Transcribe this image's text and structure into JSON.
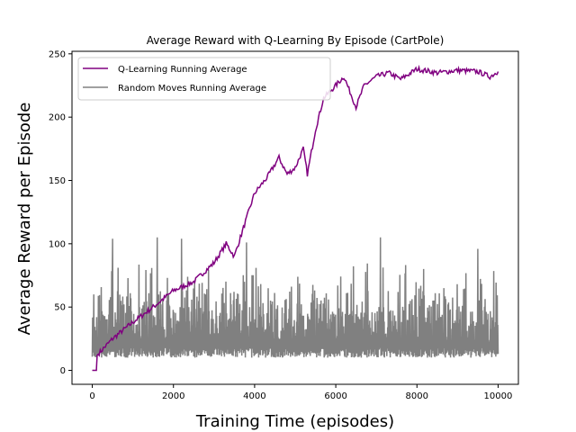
{
  "chart_data": {
    "type": "line",
    "title": "Average Reward with Q-Learning By Episode (CartPole)",
    "xlabel": "Training Time (episodes)",
    "ylabel": "Average Reward per Episode",
    "xlim": [
      -500,
      10500
    ],
    "ylim": [
      -11,
      252
    ],
    "x_ticks": [
      0,
      2000,
      4000,
      6000,
      8000,
      10000
    ],
    "x_tick_labels": [
      "0",
      "2000",
      "4000",
      "6000",
      "8000",
      "10000"
    ],
    "y_ticks": [
      0,
      50,
      100,
      150,
      200,
      250
    ],
    "y_tick_labels": [
      "0",
      "50",
      "100",
      "150",
      "200",
      "250"
    ],
    "grid": false,
    "legend_position": "upper-left",
    "series": [
      {
        "name": "Q-Learning Running Average",
        "color": "#800080",
        "x": [
          0,
          100,
          120,
          500,
          1000,
          1500,
          2000,
          2500,
          3000,
          3300,
          3500,
          3800,
          4000,
          4300,
          4600,
          4800,
          5000,
          5200,
          5300,
          5500,
          5700,
          6000,
          6200,
          6500,
          6700,
          7000,
          7300,
          7600,
          8000,
          8500,
          9000,
          9500,
          9800,
          10000
        ],
        "y": [
          0,
          0,
          12,
          25,
          38,
          50,
          63,
          70,
          85,
          100,
          90,
          120,
          140,
          152,
          168,
          155,
          160,
          175,
          155,
          190,
          215,
          225,
          232,
          208,
          225,
          232,
          235,
          230,
          238,
          235,
          237,
          236,
          232,
          236
        ]
      },
      {
        "name": "Random Moves Running Average",
        "color": "#808080",
        "x": [
          0,
          10000
        ],
        "y_band": [
          10,
          60
        ],
        "y_mean": 22,
        "peaks": [
          {
            "x": 500,
            "y": 104
          },
          {
            "x": 1600,
            "y": 105
          },
          {
            "x": 2200,
            "y": 104
          },
          {
            "x": 3800,
            "y": 101
          },
          {
            "x": 7100,
            "y": 105
          },
          {
            "x": 9500,
            "y": 96
          }
        ]
      }
    ]
  }
}
